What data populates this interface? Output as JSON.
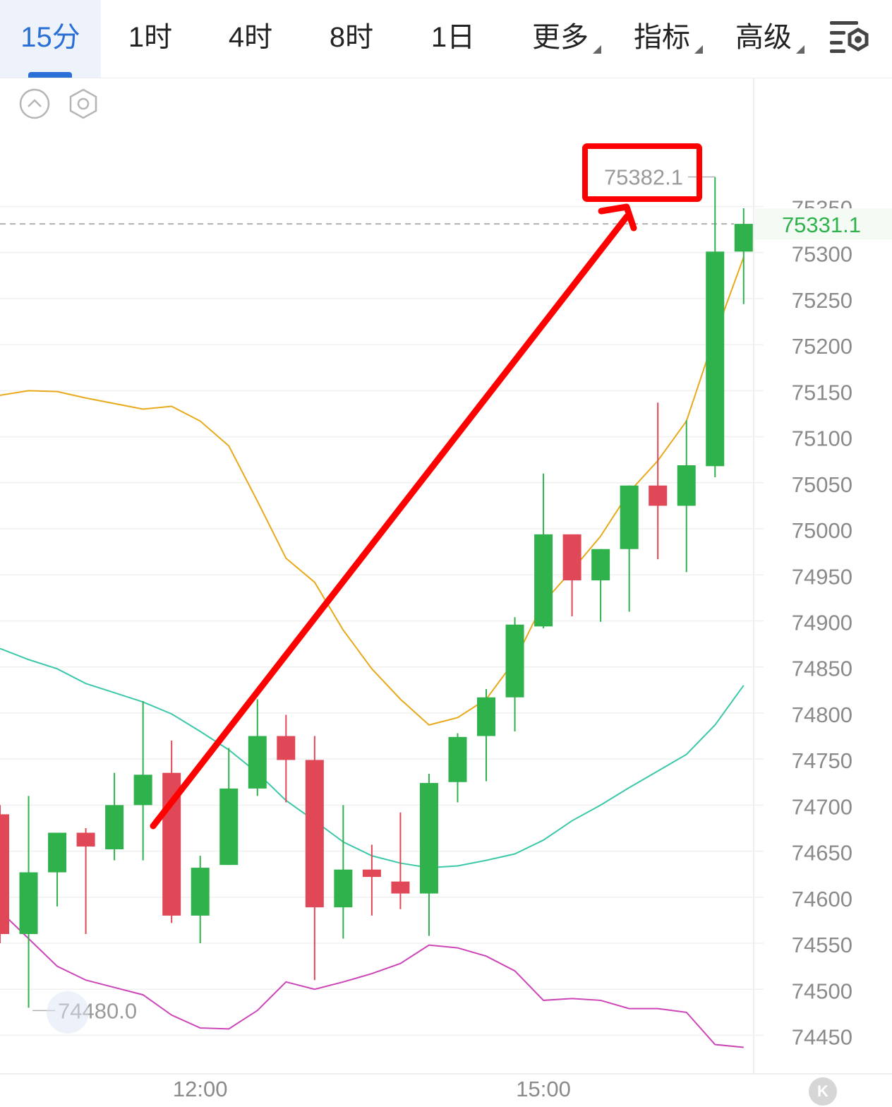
{
  "tabs": [
    {
      "label": "15分",
      "active": true
    },
    {
      "label": "1时"
    },
    {
      "label": "4时"
    },
    {
      "label": "8时"
    },
    {
      "label": "1日"
    },
    {
      "label": "更多",
      "dropdown": true
    },
    {
      "label": "指标",
      "dropdown": true
    },
    {
      "label": "高级",
      "dropdown": true
    }
  ],
  "icons": {
    "settings": "chart-settings-icon",
    "collapse": "chevron-up-circle-icon",
    "indicator": "hexagon-settings-icon",
    "reset": "k-reset-icon",
    "low_marker": "zoom-corner-icon"
  },
  "colors": {
    "up": "#2fb24b",
    "down": "#e04858",
    "accent": "#2a6fd6",
    "ma_yellow": "#e8a91a",
    "boll_mid": "#3cc8a8",
    "boll_lower": "#cc44b8",
    "annotation": "#ff0000",
    "current_price": "#2fb24b"
  },
  "chart_data": {
    "type": "candlestick",
    "y_axis_ticks": [
      "74450",
      "74500",
      "74550",
      "74600",
      "74650",
      "74700",
      "74750",
      "74800",
      "74850",
      "74900",
      "74950",
      "75000",
      "75050",
      "75100",
      "75150",
      "75200",
      "75250",
      "75300",
      "75350"
    ],
    "ylim": [
      74410,
      75440
    ],
    "x_labels": [
      "12:00",
      "15:00"
    ],
    "current_price": "75331.1",
    "high_label": "75382.1",
    "low_label": "74480.0",
    "candles": [
      {
        "open": 74690,
        "close": 74560,
        "high": 74700,
        "low": 74550
      },
      {
        "open": 74560,
        "close": 74627,
        "high": 74710,
        "low": 74480
      },
      {
        "open": 74627,
        "close": 74670,
        "high": 74670,
        "low": 74590
      },
      {
        "open": 74670,
        "close": 74655,
        "high": 74675,
        "low": 74560
      },
      {
        "open": 74652,
        "close": 74700,
        "high": 74735,
        "low": 74640
      },
      {
        "open": 74700,
        "close": 74733,
        "high": 74813,
        "low": 74640
      },
      {
        "open": 74735,
        "close": 74580,
        "high": 74770,
        "low": 74572
      },
      {
        "open": 74580,
        "close": 74632,
        "high": 74645,
        "low": 74550
      },
      {
        "open": 74635,
        "close": 74718,
        "high": 74762,
        "low": 74635
      },
      {
        "open": 74718,
        "close": 74775,
        "high": 74815,
        "low": 74710
      },
      {
        "open": 74775,
        "close": 74749,
        "high": 74798,
        "low": 74703
      },
      {
        "open": 74749,
        "close": 74589,
        "high": 74775,
        "low": 74510
      },
      {
        "open": 74589,
        "close": 74630,
        "high": 74700,
        "low": 74555
      },
      {
        "open": 74630,
        "close": 74622,
        "high": 74657,
        "low": 74580
      },
      {
        "open": 74617,
        "close": 74604,
        "high": 74692,
        "low": 74587
      },
      {
        "open": 74604,
        "close": 74724,
        "high": 74734,
        "low": 74558
      },
      {
        "open": 74725,
        "close": 74774,
        "high": 74778,
        "low": 74703
      },
      {
        "open": 74775,
        "close": 74817,
        "high": 74826,
        "low": 74726
      },
      {
        "open": 74817,
        "close": 74896,
        "high": 74904,
        "low": 74780
      },
      {
        "open": 74894,
        "close": 74994,
        "high": 75060,
        "low": 74892
      },
      {
        "open": 74994,
        "close": 74944,
        "high": 74994,
        "low": 74905
      },
      {
        "open": 74944,
        "close": 74978,
        "high": 74978,
        "low": 74899
      },
      {
        "open": 74978,
        "close": 75047,
        "high": 75047,
        "low": 74910
      },
      {
        "open": 75047,
        "close": 75025,
        "high": 75137,
        "low": 74967
      },
      {
        "open": 75025,
        "close": 75069,
        "high": 75118,
        "low": 74953
      },
      {
        "open": 75068,
        "close": 75301,
        "high": 75382.1,
        "low": 75056
      },
      {
        "open": 75301,
        "close": 75331.1,
        "high": 75348,
        "low": 75244
      }
    ],
    "series": [
      {
        "line": "upper",
        "values": [
          75145,
          75150,
          75149,
          75142,
          75136,
          75130,
          75133,
          75117,
          75090,
          75030,
          74968,
          74942,
          74890,
          74848,
          74815,
          74787,
          74795,
          74815,
          74857,
          74920,
          74955,
          74992,
          75040,
          75074,
          75117,
          75210,
          75295
        ]
      },
      {
        "line": "middle",
        "values": [
          74870,
          74858,
          74848,
          74832,
          74822,
          74812,
          74799,
          74780,
          74760,
          74735,
          74705,
          74683,
          74660,
          74645,
          74637,
          74632,
          74634,
          74640,
          74647,
          74662,
          74683,
          74700,
          74719,
          74737,
          74755,
          74787,
          74830
        ]
      },
      {
        "line": "lower",
        "values": [
          74585,
          74555,
          74525,
          74510,
          74502,
          74494,
          74472,
          74458,
          74457,
          74477,
          74508,
          74500,
          74508,
          74517,
          74528,
          74548,
          74545,
          74536,
          74520,
          74488,
          74490,
          74488,
          74479,
          74479,
          74475,
          74440,
          74437
        ]
      }
    ],
    "annotation": "arrow-up-to-high"
  }
}
